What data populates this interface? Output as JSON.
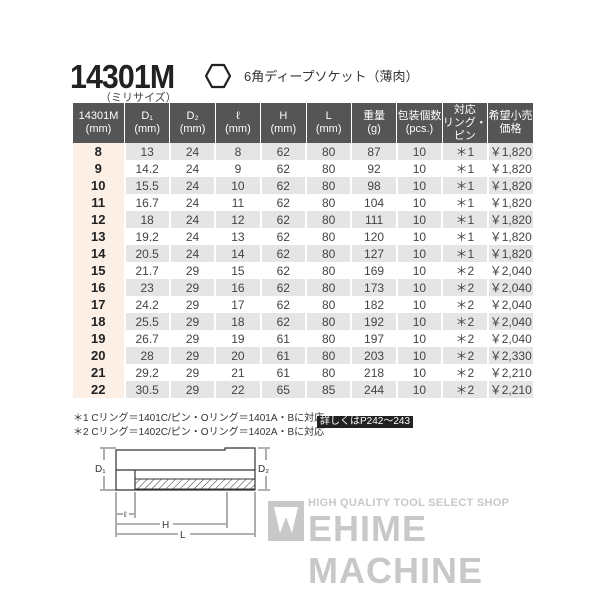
{
  "header": {
    "model": "14301M",
    "subtitle": "（ミリサイズ）",
    "description": "6角ディープソケット（薄肉）",
    "icon": "hexagon-icon"
  },
  "table": {
    "columns": [
      "14301M\n(mm)",
      "D₁\n(mm)",
      "D₂\n(mm)",
      "ℓ\n(mm)",
      "H\n(mm)",
      "L\n(mm)",
      "重量\n(g)",
      "包装個数\n(pcs.)",
      "対応\nリング・ピン",
      "希望小売\n価格"
    ],
    "rows": [
      [
        "8",
        "13",
        "24",
        "8",
        "62",
        "80",
        "87",
        "10",
        "＊1",
        "￥1,820"
      ],
      [
        "9",
        "14.2",
        "24",
        "9",
        "62",
        "80",
        "92",
        "10",
        "＊1",
        "￥1,820"
      ],
      [
        "10",
        "15.5",
        "24",
        "10",
        "62",
        "80",
        "98",
        "10",
        "＊1",
        "￥1,820"
      ],
      [
        "11",
        "16.7",
        "24",
        "11",
        "62",
        "80",
        "104",
        "10",
        "＊1",
        "￥1,820"
      ],
      [
        "12",
        "18",
        "24",
        "12",
        "62",
        "80",
        "111",
        "10",
        "＊1",
        "￥1,820"
      ],
      [
        "13",
        "19.2",
        "24",
        "13",
        "62",
        "80",
        "120",
        "10",
        "＊1",
        "￥1,820"
      ],
      [
        "14",
        "20.5",
        "24",
        "14",
        "62",
        "80",
        "127",
        "10",
        "＊1",
        "￥1,820"
      ],
      [
        "15",
        "21.7",
        "29",
        "15",
        "62",
        "80",
        "169",
        "10",
        "＊2",
        "￥2,040"
      ],
      [
        "16",
        "23",
        "29",
        "16",
        "62",
        "80",
        "173",
        "10",
        "＊2",
        "￥2,040"
      ],
      [
        "17",
        "24.2",
        "29",
        "17",
        "62",
        "80",
        "182",
        "10",
        "＊2",
        "￥2,040"
      ],
      [
        "18",
        "25.5",
        "29",
        "18",
        "62",
        "80",
        "192",
        "10",
        "＊2",
        "￥2,040"
      ],
      [
        "19",
        "26.7",
        "29",
        "19",
        "61",
        "80",
        "197",
        "10",
        "＊2",
        "￥2,040"
      ],
      [
        "20",
        "28",
        "29",
        "20",
        "61",
        "80",
        "203",
        "10",
        "＊2",
        "￥2,330"
      ],
      [
        "21",
        "29.2",
        "29",
        "21",
        "61",
        "80",
        "218",
        "10",
        "＊2",
        "￥2,210"
      ],
      [
        "22",
        "30.5",
        "29",
        "22",
        "65",
        "85",
        "244",
        "10",
        "＊2",
        "￥2,210"
      ]
    ]
  },
  "notes": [
    "＊1 Cリング＝1401C/ピン・Oリング＝1401A・Bに対応",
    "＊2 Cリング＝1402C/ピン・Oリング＝1402A・Bに対応"
  ],
  "reference": "詳しくはP242～243",
  "diagram": {
    "labels": {
      "d1": "D₁",
      "d2": "D₂",
      "l": "ℓ",
      "h": "H",
      "len": "L"
    }
  },
  "watermark": {
    "tagline": "HIGH QUALITY TOOL SELECT SHOP",
    "brand": "EHIME MACHINE"
  }
}
